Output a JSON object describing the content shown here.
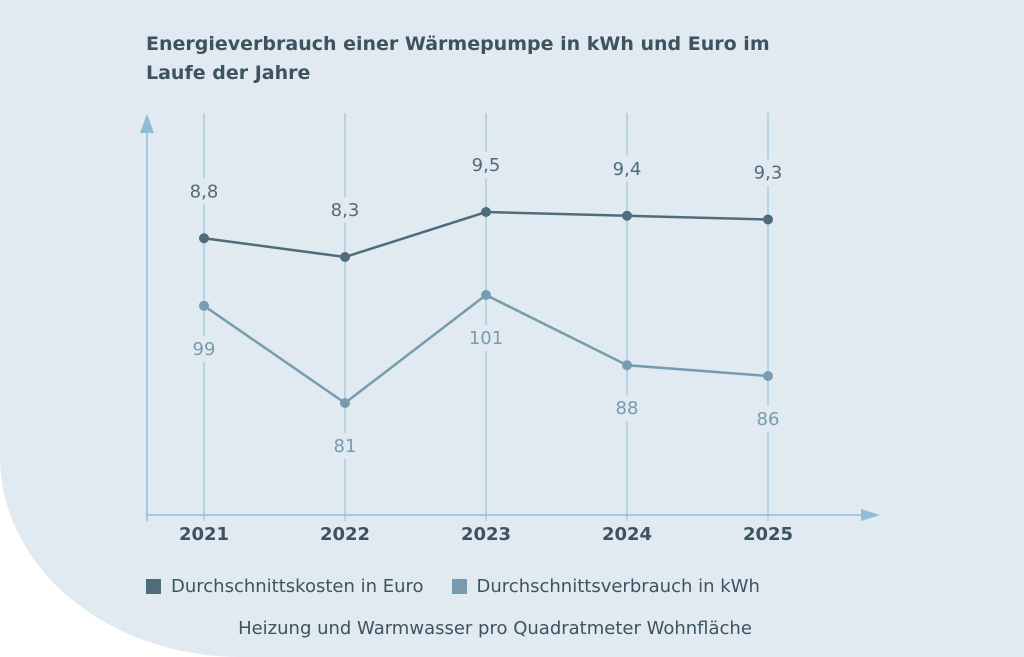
{
  "chart_data": {
    "type": "line",
    "title": "Energieverbrauch einer Wärmepumpe in kWh und Euro im Laufe der Jahre",
    "subtitle": "Heizung und Warmwasser pro Quadratmeter Wohnfläche",
    "categories": [
      "2021",
      "2022",
      "2023",
      "2024",
      "2025"
    ],
    "series": [
      {
        "name": "Durchschnittskosten in Euro",
        "values": [
          8.8,
          8.3,
          9.5,
          9.4,
          9.3
        ],
        "labels": [
          "8,8",
          "8,3",
          "9,5",
          "9,4",
          "9,3"
        ],
        "color": "#506b7b"
      },
      {
        "name": "Durchschnittsverbrauch in kWh",
        "values": [
          99,
          81,
          101,
          88,
          86
        ],
        "labels": [
          "99",
          "81",
          "101",
          "88",
          "86"
        ],
        "color": "#779cb0"
      }
    ],
    "grid": "vertical",
    "legend": "bottom",
    "colors": {
      "axis": "#8fbdd6",
      "grid": "#abcde0",
      "text": "#3d5360",
      "background": "#e1eaf0"
    }
  }
}
